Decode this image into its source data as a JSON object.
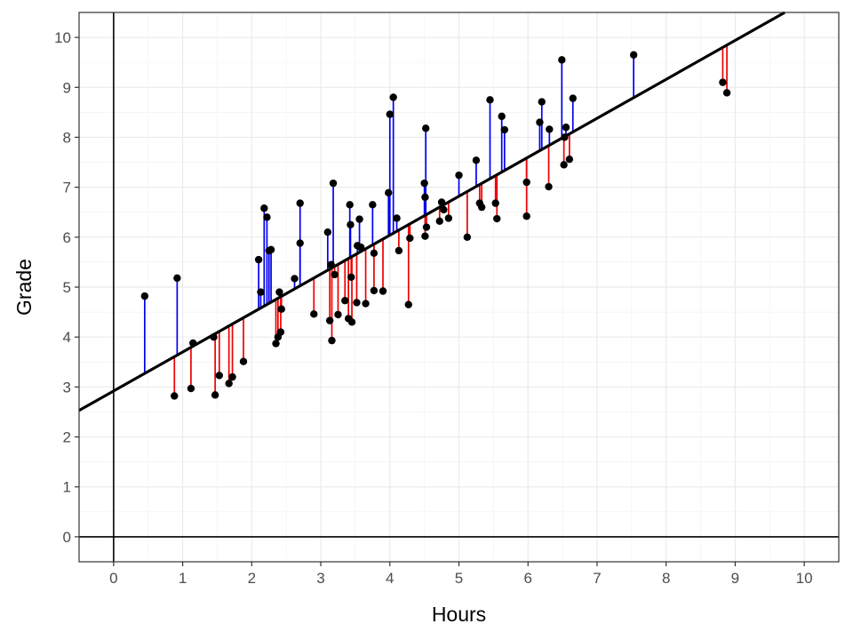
{
  "chart_data": {
    "type": "scatter",
    "xlabel": "Hours",
    "ylabel": "Grade",
    "xlim": [
      -0.5,
      10.5
    ],
    "ylim": [
      -0.5,
      10.5
    ],
    "x_ticks": [
      "0",
      "1",
      "2",
      "3",
      "4",
      "5",
      "6",
      "7",
      "8",
      "9",
      "10"
    ],
    "y_ticks": [
      "0",
      "1",
      "2",
      "3",
      "4",
      "5",
      "6",
      "7",
      "8",
      "9",
      "10"
    ],
    "grid": true,
    "regression_line": {
      "intercept": 2.92,
      "slope": 0.78
    },
    "residual_colors": {
      "positive": "#0000ee",
      "negative": "#ee0000"
    },
    "line_color": "#000000",
    "point_color": "#000000",
    "points": [
      {
        "x": 0.45,
        "y": 4.82
      },
      {
        "x": 0.92,
        "y": 5.18
      },
      {
        "x": 0.88,
        "y": 2.82
      },
      {
        "x": 1.12,
        "y": 2.97
      },
      {
        "x": 1.15,
        "y": 3.88
      },
      {
        "x": 1.45,
        "y": 4.0
      },
      {
        "x": 1.47,
        "y": 2.84
      },
      {
        "x": 1.53,
        "y": 3.23
      },
      {
        "x": 1.67,
        "y": 3.07
      },
      {
        "x": 1.72,
        "y": 3.2
      },
      {
        "x": 1.88,
        "y": 3.51
      },
      {
        "x": 2.1,
        "y": 5.55
      },
      {
        "x": 2.13,
        "y": 4.9
      },
      {
        "x": 2.18,
        "y": 6.58
      },
      {
        "x": 2.22,
        "y": 6.4
      },
      {
        "x": 2.25,
        "y": 5.73
      },
      {
        "x": 2.28,
        "y": 5.75
      },
      {
        "x": 2.35,
        "y": 3.87
      },
      {
        "x": 2.38,
        "y": 4.0
      },
      {
        "x": 2.4,
        "y": 4.9
      },
      {
        "x": 2.42,
        "y": 4.1
      },
      {
        "x": 2.43,
        "y": 4.56
      },
      {
        "x": 2.62,
        "y": 5.17
      },
      {
        "x": 2.7,
        "y": 6.68
      },
      {
        "x": 2.7,
        "y": 5.88
      },
      {
        "x": 2.9,
        "y": 4.46
      },
      {
        "x": 3.1,
        "y": 6.1
      },
      {
        "x": 3.13,
        "y": 4.33
      },
      {
        "x": 3.15,
        "y": 5.45
      },
      {
        "x": 3.16,
        "y": 3.93
      },
      {
        "x": 3.18,
        "y": 7.08
      },
      {
        "x": 3.2,
        "y": 5.25
      },
      {
        "x": 3.25,
        "y": 4.45
      },
      {
        "x": 3.35,
        "y": 4.73
      },
      {
        "x": 3.4,
        "y": 4.37
      },
      {
        "x": 3.42,
        "y": 6.65
      },
      {
        "x": 3.43,
        "y": 6.25
      },
      {
        "x": 3.44,
        "y": 5.2
      },
      {
        "x": 3.45,
        "y": 4.3
      },
      {
        "x": 3.52,
        "y": 4.69
      },
      {
        "x": 3.53,
        "y": 5.83
      },
      {
        "x": 3.56,
        "y": 6.36
      },
      {
        "x": 3.58,
        "y": 5.8
      },
      {
        "x": 3.65,
        "y": 4.67
      },
      {
        "x": 3.75,
        "y": 6.65
      },
      {
        "x": 3.77,
        "y": 5.68
      },
      {
        "x": 3.77,
        "y": 4.93
      },
      {
        "x": 3.9,
        "y": 4.92
      },
      {
        "x": 3.98,
        "y": 6.89
      },
      {
        "x": 4.0,
        "y": 8.46
      },
      {
        "x": 4.05,
        "y": 8.8
      },
      {
        "x": 4.1,
        "y": 6.38
      },
      {
        "x": 4.13,
        "y": 5.73
      },
      {
        "x": 4.27,
        "y": 4.65
      },
      {
        "x": 4.29,
        "y": 5.98
      },
      {
        "x": 4.5,
        "y": 7.08
      },
      {
        "x": 4.51,
        "y": 6.8
      },
      {
        "x": 4.51,
        "y": 6.02
      },
      {
        "x": 4.52,
        "y": 8.18
      },
      {
        "x": 4.53,
        "y": 6.2
      },
      {
        "x": 4.72,
        "y": 6.32
      },
      {
        "x": 4.75,
        "y": 6.7
      },
      {
        "x": 4.78,
        "y": 6.55
      },
      {
        "x": 4.85,
        "y": 6.38
      },
      {
        "x": 5.0,
        "y": 7.24
      },
      {
        "x": 5.12,
        "y": 6.0
      },
      {
        "x": 5.25,
        "y": 7.54
      },
      {
        "x": 5.3,
        "y": 6.68
      },
      {
        "x": 5.33,
        "y": 6.6
      },
      {
        "x": 5.45,
        "y": 8.75
      },
      {
        "x": 5.53,
        "y": 6.68
      },
      {
        "x": 5.55,
        "y": 6.37
      },
      {
        "x": 5.62,
        "y": 8.42
      },
      {
        "x": 5.66,
        "y": 8.15
      },
      {
        "x": 5.98,
        "y": 6.42
      },
      {
        "x": 5.98,
        "y": 7.1
      },
      {
        "x": 6.17,
        "y": 8.3
      },
      {
        "x": 6.2,
        "y": 8.71
      },
      {
        "x": 6.3,
        "y": 7.01
      },
      {
        "x": 6.31,
        "y": 8.16
      },
      {
        "x": 6.49,
        "y": 9.55
      },
      {
        "x": 6.52,
        "y": 7.45
      },
      {
        "x": 6.53,
        "y": 8.0
      },
      {
        "x": 6.55,
        "y": 8.2
      },
      {
        "x": 6.6,
        "y": 7.56
      },
      {
        "x": 6.65,
        "y": 8.78
      },
      {
        "x": 7.53,
        "y": 9.65
      },
      {
        "x": 8.82,
        "y": 9.1
      },
      {
        "x": 8.88,
        "y": 8.89
      }
    ]
  }
}
